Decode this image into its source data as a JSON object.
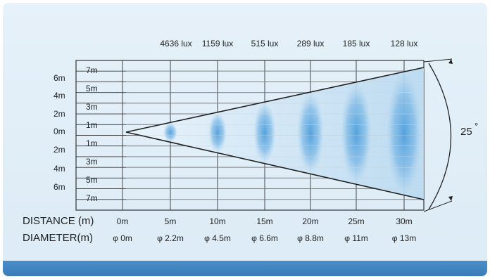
{
  "lux_labels": [
    "4636 lux",
    "1159 lux",
    "515 lux",
    "289 lux",
    "185 lux",
    "128 lux"
  ],
  "left_axis_labels": [
    "6m",
    "4m",
    "2m",
    "0m",
    "2m",
    "4m",
    "6m"
  ],
  "inner_axis_labels": [
    "7m",
    "5m",
    "3m",
    "1m",
    "1m",
    "3m",
    "5m",
    "7m"
  ],
  "distance": {
    "title": "DISTANCE (m)",
    "values": [
      "0m",
      "5m",
      "10m",
      "15m",
      "20m",
      "25m",
      "30m"
    ]
  },
  "diameter": {
    "title": "DIAMETER(m)",
    "values": [
      "φ 0m",
      "φ 2.2m",
      "φ 4.5m",
      "φ 6.6m",
      "φ 8.8m",
      "φ 11m",
      "φ 13m"
    ]
  },
  "beam_angle": "25",
  "beam_angle_unit": "°",
  "colors": {
    "background": "#dcebf6",
    "beam": "#5aa8e0",
    "footer": "#3a7bb8"
  }
}
